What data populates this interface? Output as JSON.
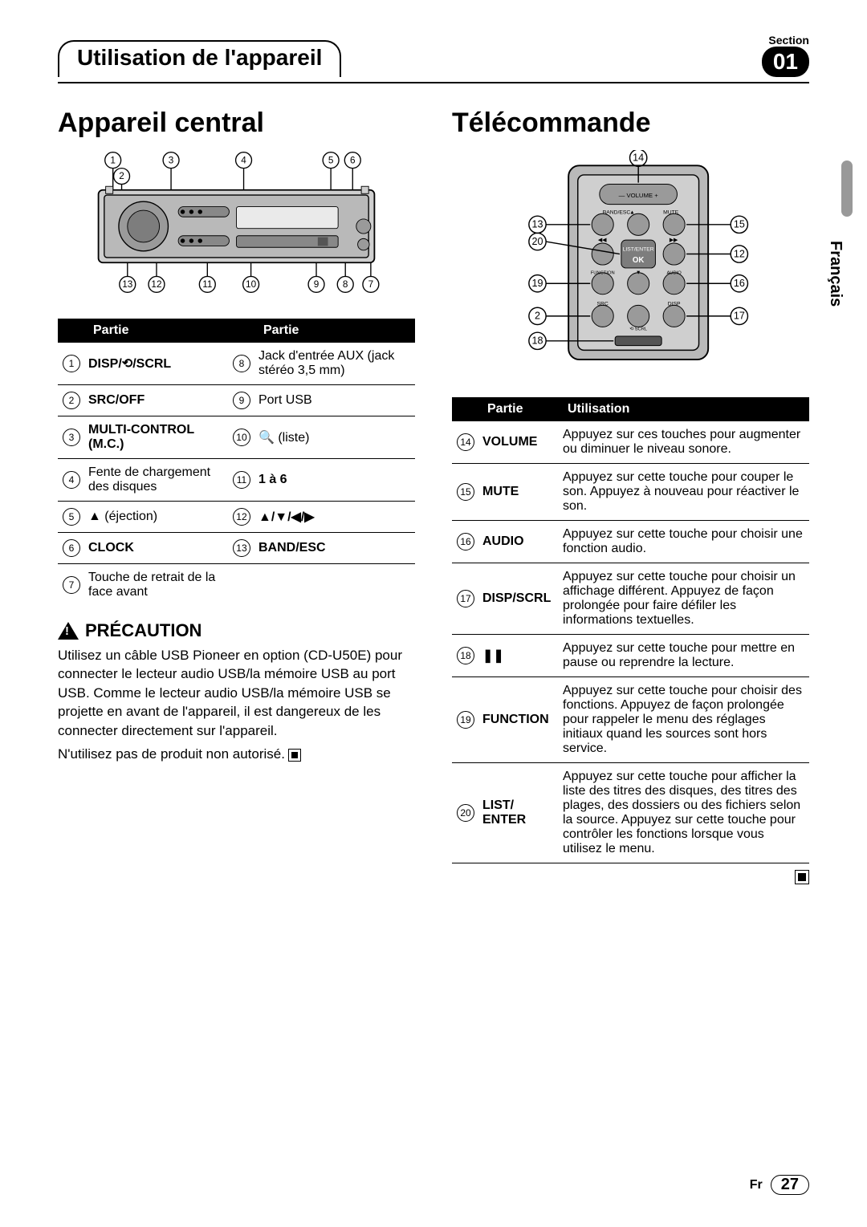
{
  "header": {
    "section_label": "Section",
    "tab_title": "Utilisation de l'appareil",
    "section_number": "01"
  },
  "sidebar_lang": "Français",
  "left": {
    "title": "Appareil central",
    "table_head_left": "Partie",
    "table_head_right": "Partie",
    "rows_left": [
      {
        "n": "1",
        "label": "DISP/⟲/SCRL",
        "bold": true
      },
      {
        "n": "2",
        "label": "SRC/OFF",
        "bold": true
      },
      {
        "n": "3",
        "label": "MULTI-CONTROL (M.C.)",
        "bold": true
      },
      {
        "n": "4",
        "label": "Fente de chargement des disques",
        "bold": false
      },
      {
        "n": "5",
        "label": "▲ (éjection)",
        "bold": false
      },
      {
        "n": "6",
        "label": "CLOCK",
        "bold": true
      },
      {
        "n": "7",
        "label": "Touche de retrait de la face avant",
        "bold": false
      }
    ],
    "rows_right": [
      {
        "n": "8",
        "label": "Jack d'entrée AUX (jack stéréo 3,5 mm)",
        "bold": false
      },
      {
        "n": "9",
        "label": "Port USB",
        "bold": false
      },
      {
        "n": "10",
        "label": "🔍 (liste)",
        "bold": false
      },
      {
        "n": "11",
        "label": "1 à 6",
        "bold": true
      },
      {
        "n": "12",
        "label": "▲/▼/◀/▶",
        "bold": true
      },
      {
        "n": "13",
        "label": "BAND/ESC",
        "bold": true
      }
    ],
    "precaution_title": "PRÉCAUTION",
    "precaution_body1": "Utilisez un câble USB Pioneer en option (CD-U50E) pour connecter le lecteur audio USB/la mémoire USB au port USB. Comme le lecteur audio USB/la mémoire USB se projette en avant de l'appareil, il est dangereux de les connecter directement sur l'appareil.",
    "precaution_body2": "N'utilisez pas de produit non autorisé."
  },
  "right": {
    "title": "Télécommande",
    "table_head_left": "Partie",
    "table_head_right": "Utilisation",
    "rows": [
      {
        "n": "14",
        "label": "VOLUME",
        "desc": "Appuyez sur ces touches pour augmenter ou diminuer le niveau sonore."
      },
      {
        "n": "15",
        "label": "MUTE",
        "desc": "Appuyez sur cette touche pour couper le son. Appuyez à nouveau pour réactiver le son."
      },
      {
        "n": "16",
        "label": "AUDIO",
        "desc": "Appuyez sur cette touche pour choisir une fonction audio."
      },
      {
        "n": "17",
        "label": "DISP/SCRL",
        "desc": "Appuyez sur cette touche pour choisir un affichage différent. Appuyez de façon prolongée pour faire défiler les informations textuelles."
      },
      {
        "n": "18",
        "label": "❚❚",
        "desc": "Appuyez sur cette touche pour mettre en pause ou reprendre la lecture."
      },
      {
        "n": "19",
        "label": "FUNCTION",
        "desc": "Appuyez sur cette touche pour choisir des fonctions. Appuyez de façon prolongée pour rappeler le menu des réglages initiaux quand les sources sont hors service."
      },
      {
        "n": "20",
        "label": "LIST/ ENTER",
        "desc": "Appuyez sur cette touche pour afficher la liste des titres des disques, des titres des plages, des dossiers ou des fichiers selon la source. Appuyez sur cette touche pour contrôler les fonctions lorsque vous utilisez le menu."
      }
    ]
  },
  "head_unit_callouts": {
    "top": [
      "1",
      "3",
      "4",
      "5",
      "6"
    ],
    "top_extra": "2",
    "bottom": [
      "13",
      "12",
      "11",
      "10",
      "9",
      "8",
      "7"
    ]
  },
  "remote_callouts": {
    "left": [
      "13",
      "20",
      "19",
      "2",
      "18"
    ],
    "right": [
      "14",
      "15",
      "12",
      "16",
      "17"
    ],
    "labels": {
      "vol": "VOLUME",
      "band": "BAND/ESC",
      "mute": "MUTE",
      "list": "LIST/ENTER",
      "ok": "OK",
      "func": "FUNCTION",
      "audio": "AUDIO",
      "src": "SRC",
      "disp": "DISP",
      "scrl": "SCRL"
    }
  },
  "footer": {
    "lang": "Fr",
    "page": "27"
  },
  "colors": {
    "black": "#000000",
    "white": "#ffffff",
    "grey": "#9a9a9a",
    "lightgrey": "#cfcfcf",
    "midgrey": "#7d7d7d"
  }
}
